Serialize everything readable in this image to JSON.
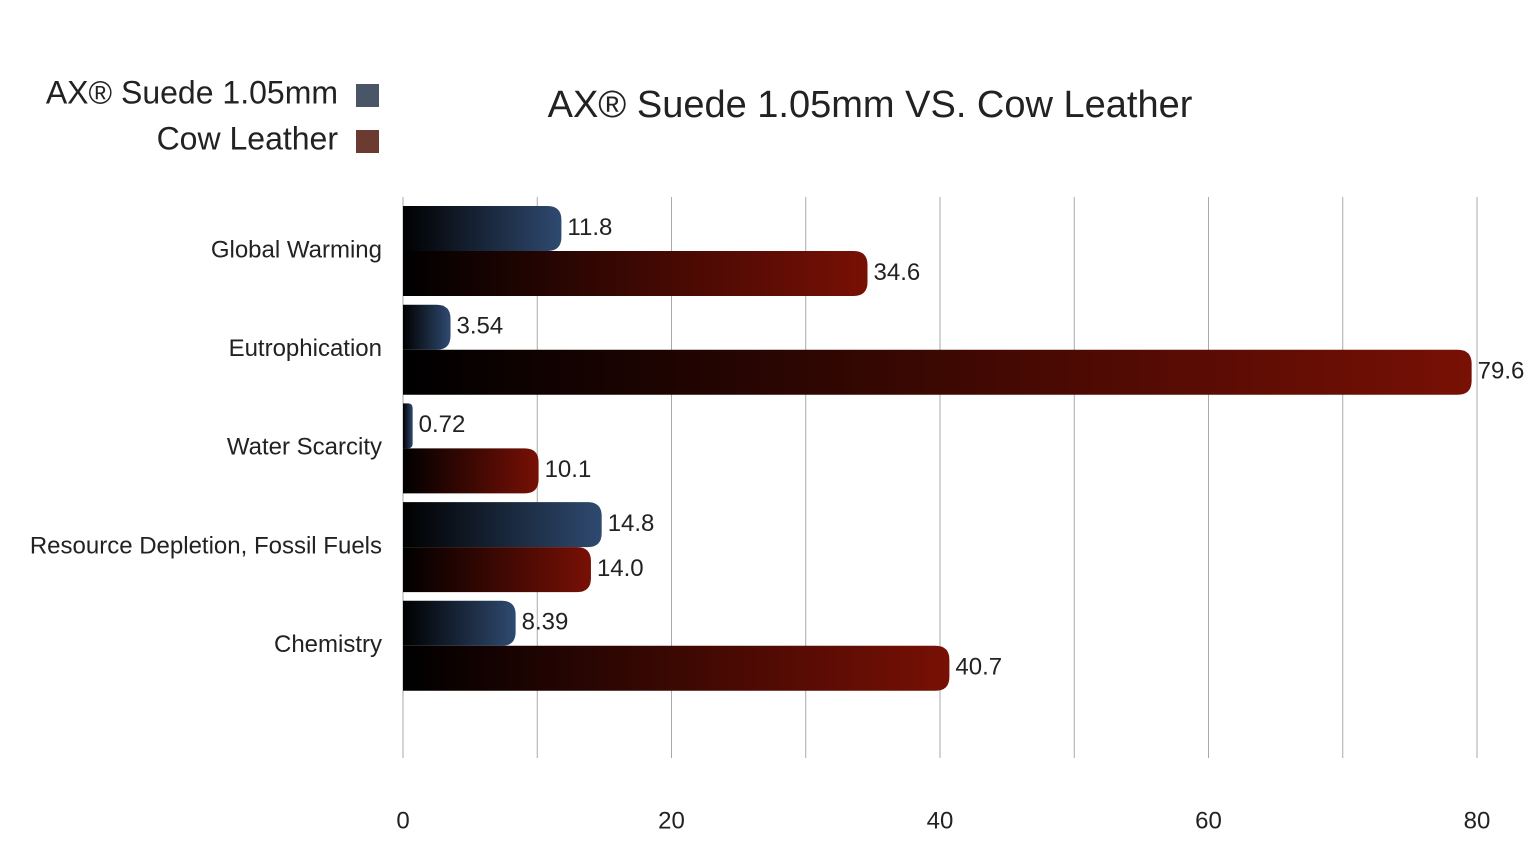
{
  "chart_data": {
    "type": "hbar",
    "title": "AX® Suede 1.05mm VS. Cow Leather",
    "categories": [
      "Global Warming",
      "Eutrophication",
      "Water Scarcity",
      "Resource Depletion, Fossil Fuels",
      "Chemistry"
    ],
    "series": [
      {
        "name": "AX® Suede 1.05mm",
        "color": "#2f4a70",
        "legend_color": "#4a5568",
        "values": [
          11.8,
          3.54,
          0.72,
          14.8,
          8.39
        ]
      },
      {
        "name": "Cow Leather",
        "color": "#781005",
        "legend_color": "#6b3a30",
        "values": [
          34.6,
          79.6,
          10.1,
          14.0,
          40.7
        ],
        "value_labels": [
          "34.6",
          "79.6",
          "10.1",
          "14.0",
          "40.7"
        ]
      }
    ],
    "xlim": [
      0,
      80
    ],
    "xticks": [
      0,
      20,
      40,
      60,
      80
    ],
    "minor_xticks": [
      10,
      30,
      50,
      70
    ],
    "grid": true,
    "legend": "top-left"
  }
}
